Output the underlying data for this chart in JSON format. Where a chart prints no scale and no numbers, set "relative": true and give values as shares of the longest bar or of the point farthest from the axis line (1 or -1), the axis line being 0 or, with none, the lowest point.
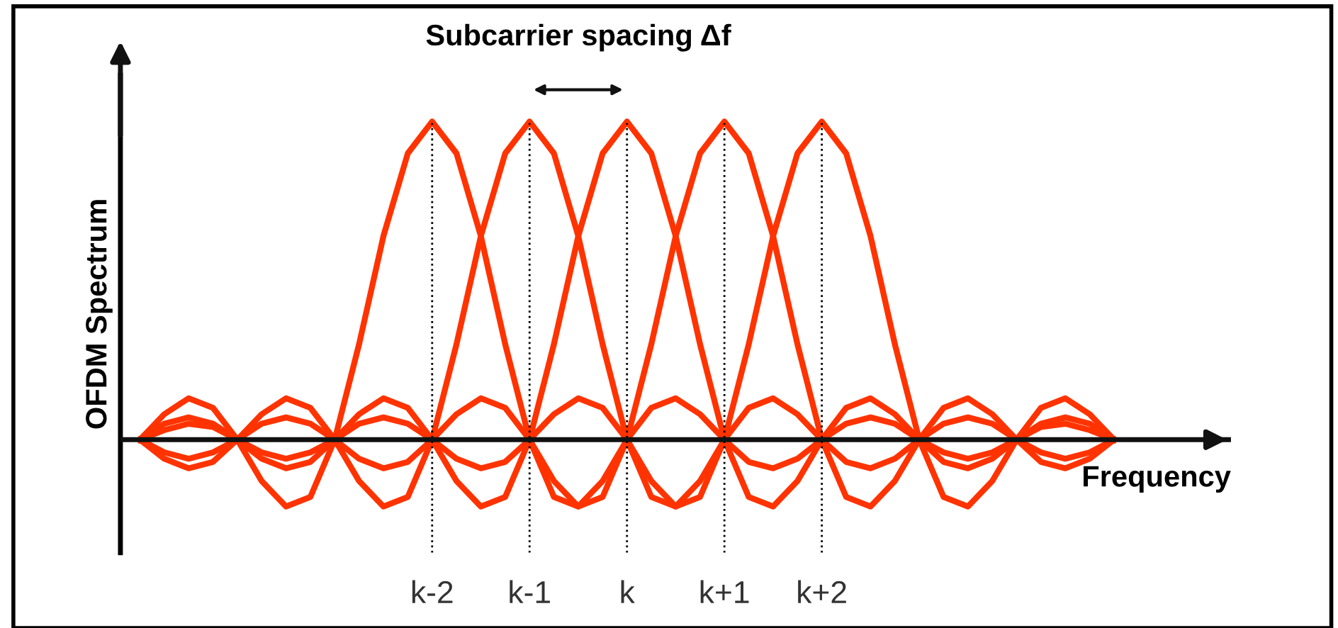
{
  "chart_data": {
    "type": "line",
    "relative": true,
    "ylabel": "OFDM Spectrum",
    "xlabel": "Frequency",
    "categories": [
      null,
      null,
      null,
      null,
      null,
      null,
      null,
      null,
      null,
      null,
      null,
      null,
      "k-2",
      null,
      null,
      null,
      "k-1",
      null,
      null,
      null,
      "k",
      null,
      null,
      null,
      "k+1",
      null,
      null,
      null,
      "k+2",
      null,
      null,
      null,
      null,
      null,
      null,
      null,
      null,
      null,
      null,
      null,
      null
    ],
    "series": [
      {
        "color": "#ff3300",
        "values": [
          0,
          0.08,
          0.13,
          0.1,
          0,
          -0.13,
          -0.21,
          -0.18,
          0,
          0.3,
          0.64,
          0.9,
          1,
          0.9,
          0.64,
          0.3,
          0,
          -0.18,
          -0.21,
          -0.13,
          0,
          0.1,
          0.13,
          0.08,
          0,
          -0.07,
          -0.09,
          -0.06,
          0,
          0.05,
          0.07,
          0.05,
          0,
          -0.04,
          -0.06,
          -0.04,
          0,
          0.04,
          0.05,
          0.03,
          0
        ]
      },
      {
        "color": "#ff3300",
        "values": [
          0,
          -0.06,
          -0.09,
          -0.07,
          0,
          0.08,
          0.13,
          0.1,
          0,
          -0.13,
          -0.21,
          -0.18,
          0,
          0.3,
          0.64,
          0.9,
          1,
          0.9,
          0.64,
          0.3,
          0,
          -0.18,
          -0.21,
          -0.13,
          0,
          0.1,
          0.13,
          0.08,
          0,
          -0.07,
          -0.09,
          -0.06,
          0,
          0.05,
          0.07,
          0.05,
          0,
          -0.04,
          -0.06,
          -0.04,
          0
        ]
      },
      {
        "color": "#ff3300",
        "values": [
          0,
          0.05,
          0.07,
          0.05,
          0,
          -0.06,
          -0.09,
          -0.07,
          0,
          0.08,
          0.13,
          0.1,
          0,
          -0.13,
          -0.21,
          -0.18,
          0,
          0.3,
          0.64,
          0.9,
          1,
          0.9,
          0.64,
          0.3,
          0,
          -0.18,
          -0.21,
          -0.13,
          0,
          0.1,
          0.13,
          0.08,
          0,
          -0.07,
          -0.09,
          -0.06,
          0,
          0.05,
          0.07,
          0.05,
          0
        ]
      },
      {
        "color": "#ff3300",
        "values": [
          0,
          -0.04,
          -0.06,
          -0.04,
          0,
          0.05,
          0.07,
          0.05,
          0,
          -0.06,
          -0.09,
          -0.07,
          0,
          0.08,
          0.13,
          0.1,
          0,
          -0.13,
          -0.21,
          -0.18,
          0,
          0.3,
          0.64,
          0.9,
          1,
          0.9,
          0.64,
          0.3,
          0,
          -0.18,
          -0.21,
          -0.13,
          0,
          0.1,
          0.13,
          0.08,
          0,
          -0.07,
          -0.09,
          -0.06,
          0
        ]
      },
      {
        "color": "#ff3300",
        "values": [
          0,
          0.03,
          0.05,
          0.04,
          0,
          -0.04,
          -0.06,
          -0.04,
          0,
          0.05,
          0.07,
          0.05,
          0,
          -0.06,
          -0.09,
          -0.07,
          0,
          0.08,
          0.13,
          0.1,
          0,
          -0.13,
          -0.21,
          -0.18,
          0,
          0.3,
          0.64,
          0.9,
          1,
          0.9,
          0.64,
          0.3,
          0,
          -0.18,
          -0.21,
          -0.13,
          0,
          0.1,
          0.13,
          0.08,
          0
        ]
      }
    ],
    "ref_lines": [
      {
        "axis": "x",
        "value": "k-2",
        "color": "#000000",
        "line_style": "dotted"
      },
      {
        "axis": "x",
        "value": "k-1",
        "color": "#000000",
        "line_style": "dotted"
      },
      {
        "axis": "x",
        "value": "k",
        "color": "#000000",
        "line_style": "dotted"
      },
      {
        "axis": "x",
        "value": "k+1",
        "color": "#000000",
        "line_style": "dotted"
      },
      {
        "axis": "x",
        "value": "k+2",
        "color": "#000000",
        "line_style": "dotted"
      }
    ],
    "annotations": [
      "Subcarrier spacing Δf"
    ],
    "grid": false,
    "marker": "none",
    "line_style": "solid"
  }
}
